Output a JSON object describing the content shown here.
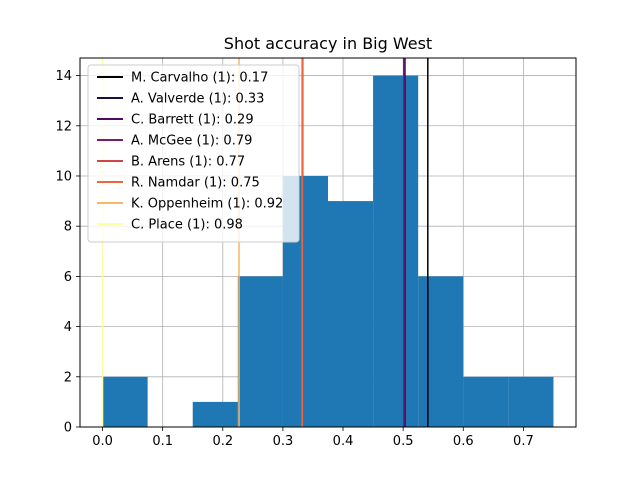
{
  "chart_data": {
    "type": "bar",
    "title": "Shot accuracy in Big West",
    "xlabel": "",
    "ylabel": "",
    "xlim": [
      -0.0375,
      0.7875
    ],
    "ylim": [
      0,
      14.7
    ],
    "grid": true,
    "legend_position": "top-left",
    "x_ticks": [
      0.0,
      0.1,
      0.2,
      0.3,
      0.4,
      0.5,
      0.6,
      0.7
    ],
    "x_tick_labels": [
      "0.0",
      "0.1",
      "0.2",
      "0.3",
      "0.4",
      "0.5",
      "0.6",
      "0.7"
    ],
    "y_ticks": [
      0,
      2,
      4,
      6,
      8,
      10,
      12,
      14
    ],
    "y_tick_labels": [
      "0",
      "2",
      "4",
      "6",
      "8",
      "10",
      "12",
      "14"
    ],
    "bar_color": "#1f77b4",
    "bins": [
      {
        "x0": 0.0,
        "x1": 0.075,
        "count": 2
      },
      {
        "x0": 0.075,
        "x1": 0.15,
        "count": 0
      },
      {
        "x0": 0.15,
        "x1": 0.225,
        "count": 1
      },
      {
        "x0": 0.225,
        "x1": 0.3,
        "count": 6
      },
      {
        "x0": 0.3,
        "x1": 0.375,
        "count": 10
      },
      {
        "x0": 0.375,
        "x1": 0.45,
        "count": 9
      },
      {
        "x0": 0.45,
        "x1": 0.525,
        "count": 14
      },
      {
        "x0": 0.525,
        "x1": 0.6,
        "count": 6
      },
      {
        "x0": 0.6,
        "x1": 0.675,
        "count": 2
      },
      {
        "x0": 0.675,
        "x1": 0.75,
        "count": 2
      }
    ],
    "vlines": [
      {
        "label": "M. Carvalho (1): 0.17",
        "x": 0.541,
        "color": "#000000"
      },
      {
        "label": "A. Valverde (1): 0.33",
        "x": 0.503,
        "color": "#1b0c41"
      },
      {
        "label": "C. Barrett (1): 0.29",
        "x": 0.502,
        "color": "#4a0c6b"
      },
      {
        "label": "A. McGee (1): 0.79",
        "x": 0.501,
        "color": "#781c6d"
      },
      {
        "label": "B. Arens (1): 0.77",
        "x": 0.333,
        "color": "#cf4446"
      },
      {
        "label": "R. Namdar (1): 0.75",
        "x": 0.332,
        "color": "#f0663b"
      },
      {
        "label": "K. Oppenheim (1): 0.92",
        "x": 0.227,
        "color": "#fbb563"
      },
      {
        "label": "C. Place (1): 0.98",
        "x": 0.0,
        "color": "#fcffa4"
      }
    ]
  }
}
